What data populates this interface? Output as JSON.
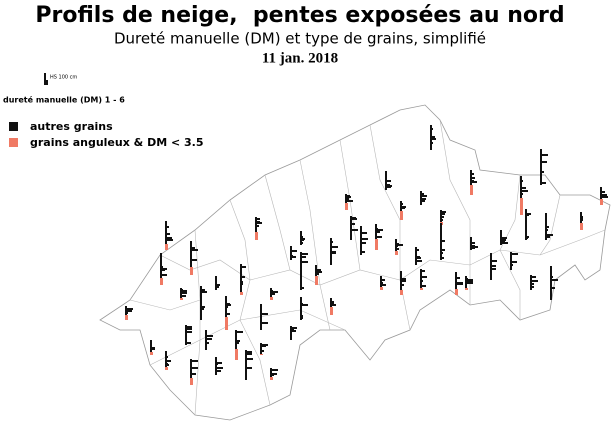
{
  "header": {
    "title": "Profils de neige,  pentes exposées au nord",
    "subtitle": "Dureté manuelle (DM) et type de grains, simplifié",
    "date": "11 jan. 2018"
  },
  "scale": {
    "label": "HS 100 cm",
    "hardness": "dureté manuelle (DM) 1 - 6"
  },
  "legend": [
    {
      "label": "autres grains",
      "color": "#111111"
    },
    {
      "label": "grains anguleux & DM < 3.5",
      "color": "#f07a64"
    }
  ]
}
